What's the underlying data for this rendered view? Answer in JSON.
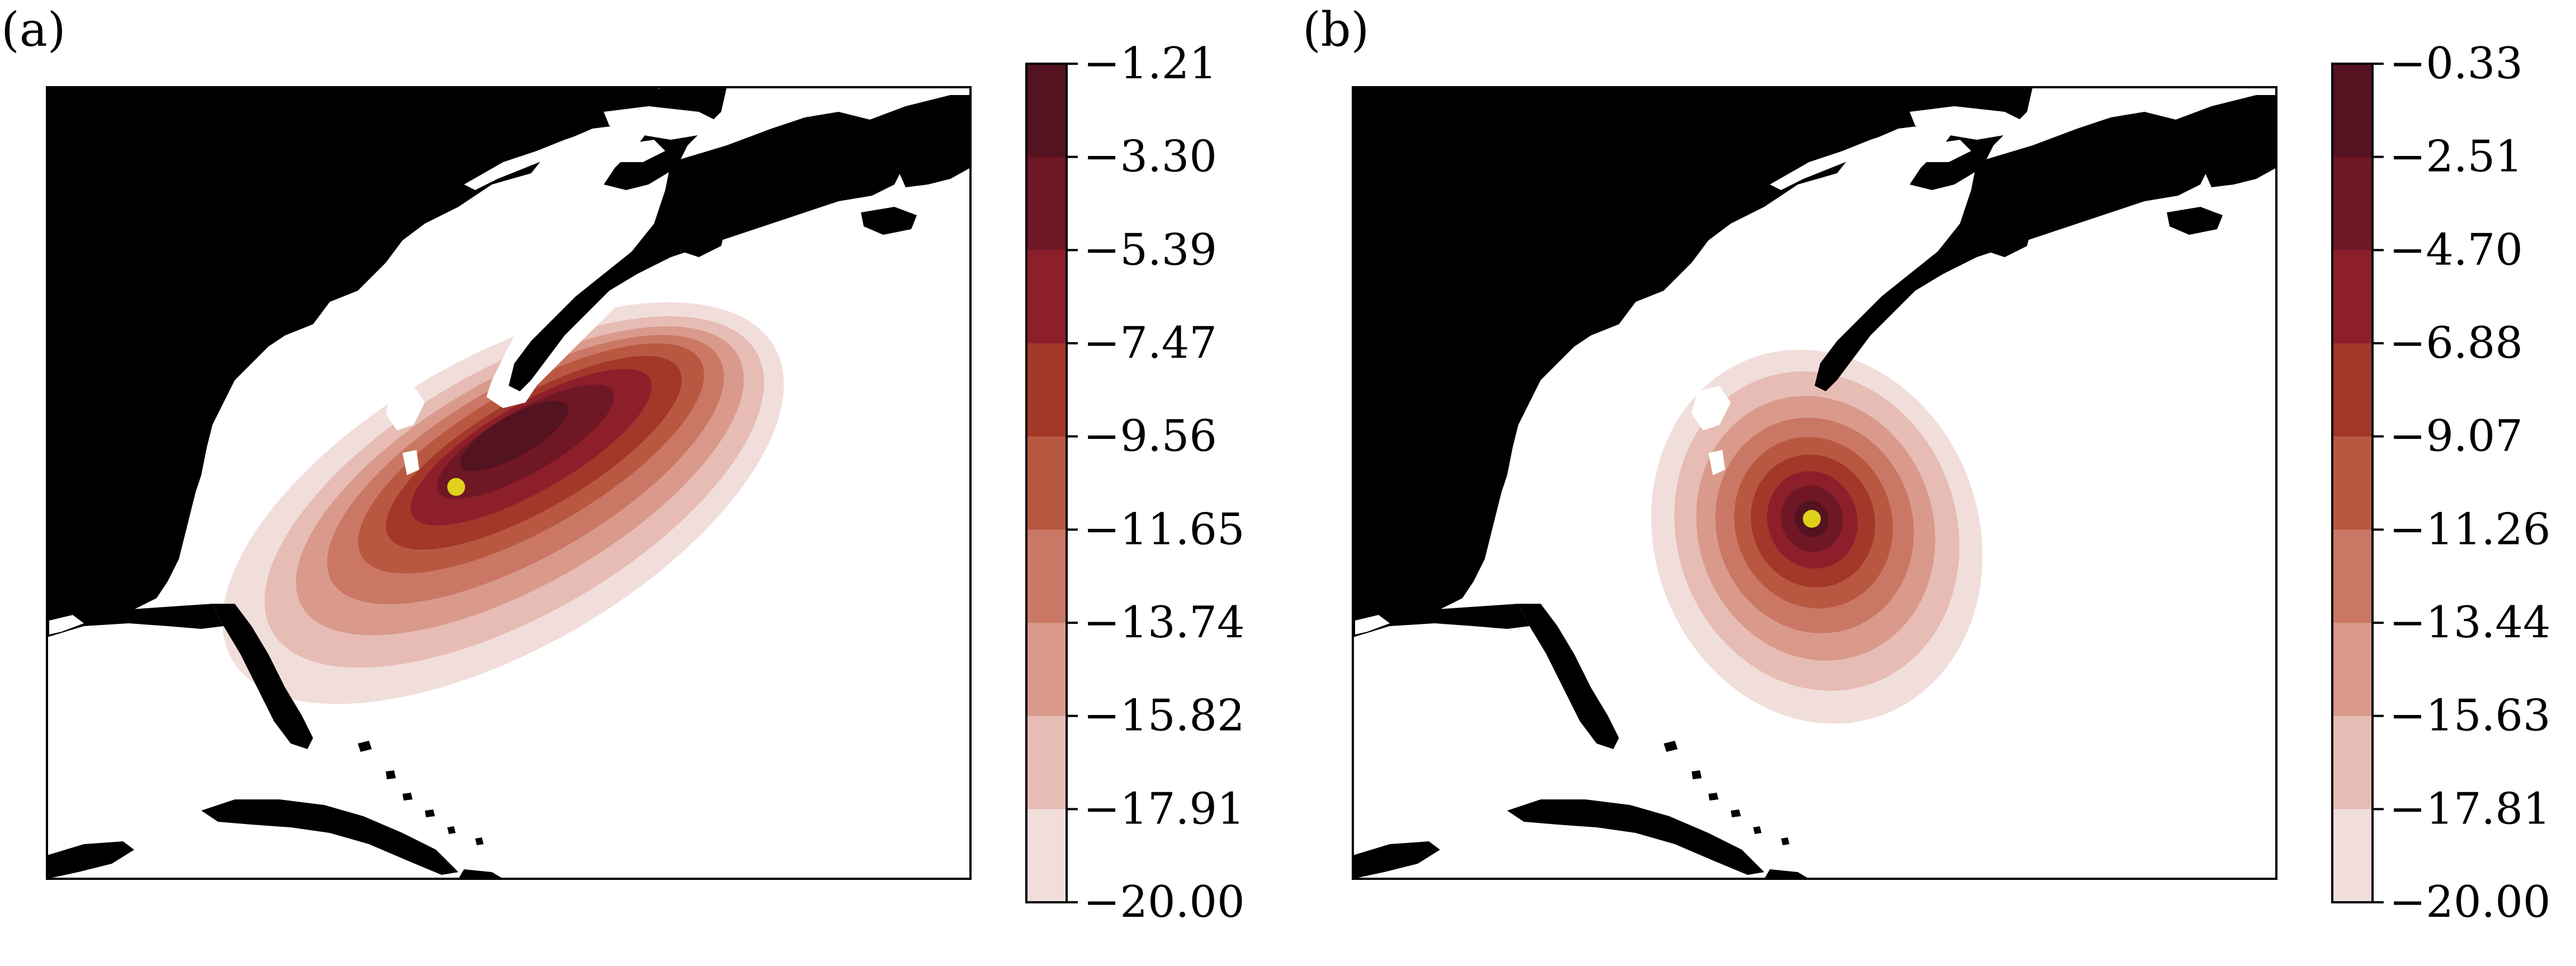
{
  "panels": [
    {
      "label": "(a)",
      "colorbar": {
        "ticks": [
          "−1.21",
          "−3.30",
          "−5.39",
          "−7.47",
          "−9.56",
          "−11.65",
          "−13.74",
          "−15.82",
          "−17.91",
          "−20.00"
        ]
      },
      "marker_color": "#e0d11c"
    },
    {
      "label": "(b)",
      "colorbar": {
        "ticks": [
          "−0.33",
          "−2.51",
          "−4.70",
          "−6.88",
          "−9.07",
          "−11.26",
          "−13.44",
          "−15.63",
          "−17.81",
          "−20.00"
        ]
      },
      "marker_color": "#e0d11c"
    }
  ],
  "colors": {
    "land": "#000000",
    "ocean": "#ffffff",
    "levels": [
      "#f1dedb",
      "#e6bcb4",
      "#d99a8b",
      "#ca7865",
      "#b95840",
      "#a3372a",
      "#8c1f2a",
      "#701726",
      "#541320"
    ]
  }
}
